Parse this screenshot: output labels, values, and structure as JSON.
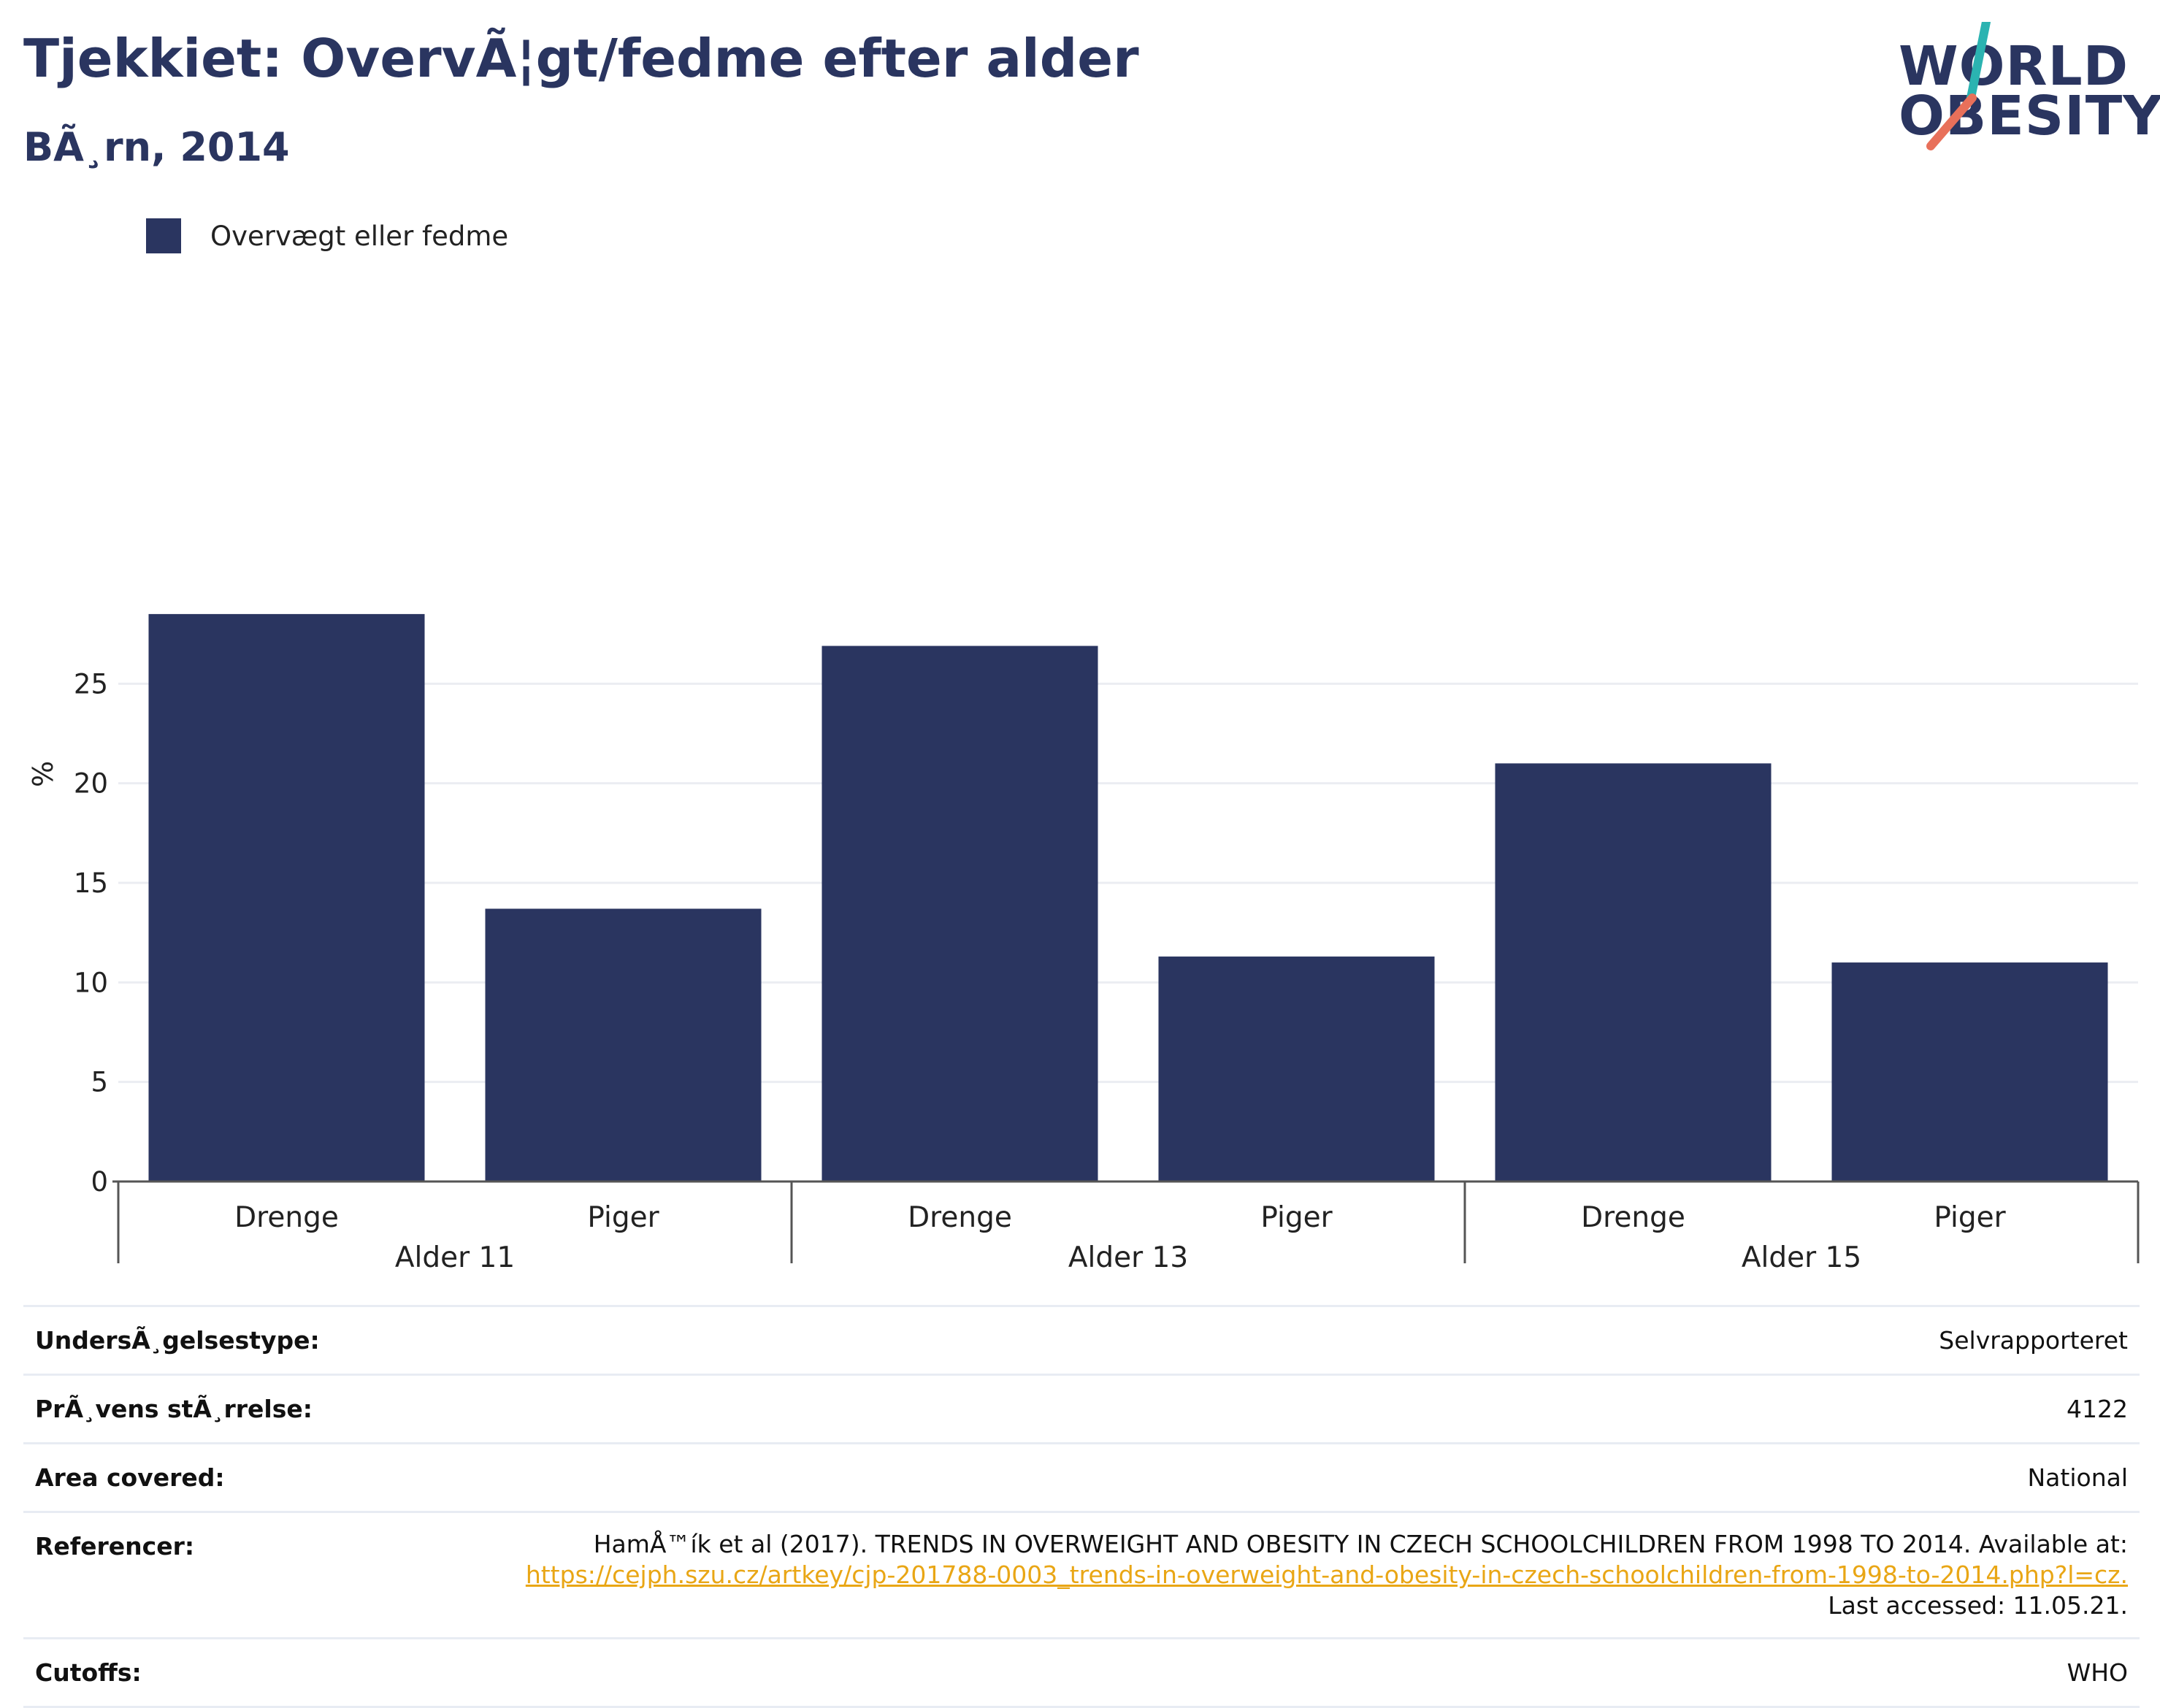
{
  "header": {
    "title": "Tjekkiet: OvervÃ¦gt/fedme efter alder",
    "subtitle": "BÃ¸rn, 2014"
  },
  "logo": {
    "line1": "WORLD",
    "line2": "OBESITY",
    "accent_teal": "#2bb3b1",
    "accent_coral": "#e8705a"
  },
  "legend": {
    "label": "Overvægt eller fedme",
    "color": "#2a3560"
  },
  "chart_data": {
    "type": "bar",
    "ylabel": "%",
    "ylim": [
      0,
      30
    ],
    "yticks": [
      0,
      5,
      10,
      15,
      20,
      25
    ],
    "grid": true,
    "legend_position": "top-left",
    "groups": [
      {
        "label": "Alder 11",
        "categories": [
          "Drenge",
          "Piger"
        ]
      },
      {
        "label": "Alder 13",
        "categories": [
          "Drenge",
          "Piger"
        ]
      },
      {
        "label": "Alder 15",
        "categories": [
          "Drenge",
          "Piger"
        ]
      }
    ],
    "series": [
      {
        "name": "Overvægt eller fedme",
        "color": "#2a3560",
        "values": [
          28.5,
          13.7,
          26.9,
          11.3,
          21.0,
          11.0
        ]
      }
    ]
  },
  "meta": {
    "rows": [
      {
        "key": "UndersÃ¸gelsestype:",
        "value": "Selvrapporteret"
      },
      {
        "key": "PrÃ¸vens stÃ¸rrelse:",
        "value": "4122"
      },
      {
        "key": "Area covered:",
        "value": "National"
      }
    ],
    "reference": {
      "key": "Referencer:",
      "text": "HamÅ™ík et al (2017). TRENDS IN OVERWEIGHT AND OBESITY IN CZECH SCHOOLCHILDREN FROM 1998 TO 2014. Available at:",
      "link": "https://cejph.szu.cz/artkey/cjp-201788-0003_trends-in-overweight-and-obesity-in-czech-schoolchildren-from-1998-to-2014.php?l=cz.",
      "accessed": "Last accessed: 11.05.21."
    },
    "cutoffs": {
      "key": "Cutoffs:",
      "value": "WHO"
    }
  }
}
